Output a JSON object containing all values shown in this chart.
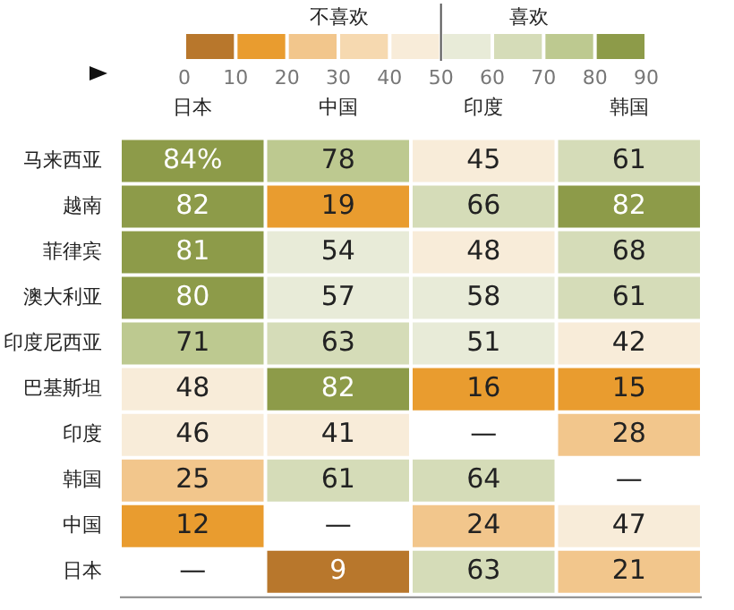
{
  "chart_data": {
    "type": "heatmap",
    "categories": [
      "日本",
      "中国",
      "印度",
      "韩国"
    ],
    "y_categories": [
      "马来西亚",
      "越南",
      "菲律宾",
      "澳大利亚",
      "印度尼西亚",
      "巴基斯坦",
      "印度",
      "韩国",
      "中国",
      "日本"
    ],
    "cells": [
      [
        84,
        78,
        45,
        61
      ],
      [
        82,
        19,
        66,
        82
      ],
      [
        81,
        54,
        48,
        68
      ],
      [
        80,
        57,
        58,
        61
      ],
      [
        71,
        63,
        51,
        42
      ],
      [
        48,
        82,
        16,
        15
      ],
      [
        46,
        41,
        null,
        28
      ],
      [
        25,
        61,
        64,
        null
      ],
      [
        12,
        null,
        24,
        47
      ],
      [
        null,
        9,
        63,
        21
      ]
    ],
    "cell_labels": [
      [
        "84%",
        "78",
        "45",
        "61"
      ],
      [
        "82",
        "19",
        "66",
        "82"
      ],
      [
        "81",
        "54",
        "48",
        "68"
      ],
      [
        "80",
        "57",
        "58",
        "61"
      ],
      [
        "71",
        "63",
        "51",
        "42"
      ],
      [
        "48",
        "82",
        "16",
        "15"
      ],
      [
        "46",
        "41",
        "—",
        "28"
      ],
      [
        "25",
        "61",
        "64",
        "—"
      ],
      [
        "12",
        "—",
        "24",
        "47"
      ],
      [
        "—",
        "9",
        "63",
        "21"
      ]
    ],
    "clim": [
      0,
      90
    ],
    "cticks": [
      0,
      10,
      20,
      30,
      40,
      50,
      60,
      70,
      80,
      90
    ],
    "colors": [
      "#b8772c",
      "#e99c2f",
      "#f2c68c",
      "#f6d9b0",
      "#f8ecd9",
      "#e8ebd8",
      "#d5dcb8",
      "#bdc990",
      "#8d9b49"
    ],
    "annotations": [
      "不喜欢",
      "喜欢"
    ]
  }
}
